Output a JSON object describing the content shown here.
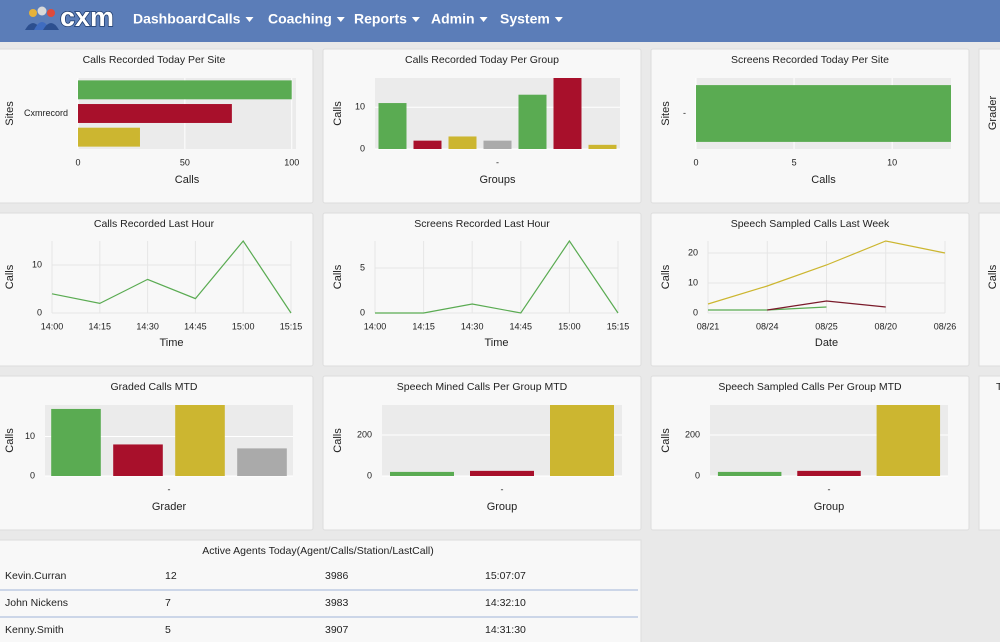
{
  "nav": {
    "logo": "cxm",
    "items": [
      "Dashboard",
      "Calls",
      "Coaching",
      "Reports",
      "Admin",
      "System"
    ]
  },
  "chart_data": [
    {
      "type": "bar",
      "horizontal": true,
      "title": "Calls Recorded Today Per Site",
      "x_label": "Calls",
      "y_label": "Sites",
      "categories": [
        "Cxmrecord"
      ],
      "xlim": [
        0,
        102
      ],
      "xticks": [
        0,
        50,
        100
      ],
      "series": [
        {
          "color": "#5aab52",
          "values": [
            100
          ]
        },
        {
          "color": "#a8102b",
          "values": [
            72
          ]
        },
        {
          "color": "#ccb630",
          "values": [
            29
          ]
        }
      ]
    },
    {
      "type": "bar",
      "title": "Calls Recorded Today Per Group",
      "x_label": "Groups",
      "y_label": "Calls",
      "categories": [
        "-"
      ],
      "ylim": [
        0,
        17
      ],
      "yticks": [
        0,
        10
      ],
      "series": [
        {
          "color": "#5aab52",
          "values": [
            11
          ]
        },
        {
          "color": "#a8102b",
          "values": [
            2
          ]
        },
        {
          "color": "#ccb630",
          "values": [
            3
          ]
        },
        {
          "color": "#aaaaaa",
          "values": [
            2
          ]
        },
        {
          "color": "#5aab52",
          "values": [
            13
          ]
        },
        {
          "color": "#a8102b",
          "values": [
            17
          ]
        },
        {
          "color": "#ccb630",
          "values": [
            1
          ]
        }
      ]
    },
    {
      "type": "bar",
      "horizontal": true,
      "title": "Screens Recorded Today Per Site",
      "x_label": "Calls",
      "y_label": "Sites",
      "categories": [
        "-"
      ],
      "xlim": [
        0,
        13
      ],
      "xticks": [
        0,
        5,
        10
      ],
      "series": [
        {
          "color": "#5aab52",
          "values": [
            13
          ]
        }
      ]
    },
    {
      "type": "line",
      "title": "Calls Recorded Last Hour",
      "x_label": "Time",
      "y_label": "Calls",
      "categories": [
        "14:00",
        "14:15",
        "14:30",
        "14:45",
        "15:00",
        "15:15"
      ],
      "ylim": [
        0,
        15
      ],
      "yticks": [
        0,
        10
      ],
      "series": [
        {
          "color": "#5aab52",
          "values": [
            4,
            2,
            7,
            3,
            15,
            0
          ]
        }
      ]
    },
    {
      "type": "line",
      "title": "Screens Recorded Last Hour",
      "x_label": "Time",
      "y_label": "Calls",
      "categories": [
        "14:00",
        "14:15",
        "14:30",
        "14:45",
        "15:00",
        "15:15"
      ],
      "ylim": [
        0,
        8
      ],
      "yticks": [
        0,
        5
      ],
      "series": [
        {
          "color": "#5aab52",
          "values": [
            0,
            0,
            1,
            0,
            8,
            0
          ]
        }
      ]
    },
    {
      "type": "line",
      "title": "Speech Sampled Calls Last Week",
      "x_label": "Date",
      "y_label": "Calls",
      "categories": [
        "08/21",
        "08/24",
        "08/25",
        "08/20",
        "08/26"
      ],
      "ylim": [
        0,
        24
      ],
      "yticks": [
        0,
        10,
        20
      ],
      "series": [
        {
          "color": "#ccb630",
          "values": [
            3,
            9,
            16,
            24,
            20
          ]
        },
        {
          "color": "#5aab52",
          "values": [
            1,
            1,
            2,
            null,
            null
          ]
        },
        {
          "color": "#7a1a2a",
          "values": [
            null,
            1,
            4,
            2,
            null
          ]
        }
      ]
    },
    {
      "type": "bar",
      "title": "Graded Calls MTD",
      "x_label": "Grader",
      "y_label": "Calls",
      "categories": [
        "-"
      ],
      "ylim": [
        0,
        18
      ],
      "yticks": [
        0,
        10
      ],
      "series": [
        {
          "color": "#5aab52",
          "values": [
            17
          ]
        },
        {
          "color": "#a8102b",
          "values": [
            8
          ]
        },
        {
          "color": "#ccb630",
          "values": [
            18
          ]
        },
        {
          "color": "#aaaaaa",
          "values": [
            7
          ]
        }
      ]
    },
    {
      "type": "bar",
      "title": "Speech Mined Calls Per Group MTD",
      "x_label": "Group",
      "y_label": "Calls",
      "categories": [
        "-"
      ],
      "ylim": [
        0,
        346
      ],
      "yticks": [
        0,
        200
      ],
      "series": [
        {
          "color": "#5aab52",
          "values": [
            20
          ]
        },
        {
          "color": "#a8102b",
          "values": [
            25
          ]
        },
        {
          "color": "#ccb630",
          "values": [
            346
          ]
        }
      ]
    },
    {
      "type": "bar",
      "title": "Speech Sampled Calls Per Group MTD",
      "x_label": "Group",
      "y_label": "Calls",
      "categories": [
        "-"
      ],
      "ylim": [
        0,
        346
      ],
      "yticks": [
        0,
        200
      ],
      "series": [
        {
          "color": "#5aab52",
          "values": [
            20
          ]
        },
        {
          "color": "#a8102b",
          "values": [
            25
          ]
        },
        {
          "color": "#ccb630",
          "values": [
            346
          ]
        }
      ]
    }
  ],
  "side_panels": [
    {
      "y_label": "Grader"
    },
    {
      "y_label": "Calls"
    },
    {
      "title": "T"
    }
  ],
  "table": {
    "title": "Active Agents Today(Agent/Calls/Station/LastCall)",
    "rows": [
      [
        "Kevin.Curran",
        12,
        3986,
        "15:07:07"
      ],
      [
        "John Nickens",
        7,
        3983,
        "14:32:10"
      ],
      [
        "Kenny.Smith",
        5,
        3907,
        "14:31:30"
      ]
    ]
  }
}
